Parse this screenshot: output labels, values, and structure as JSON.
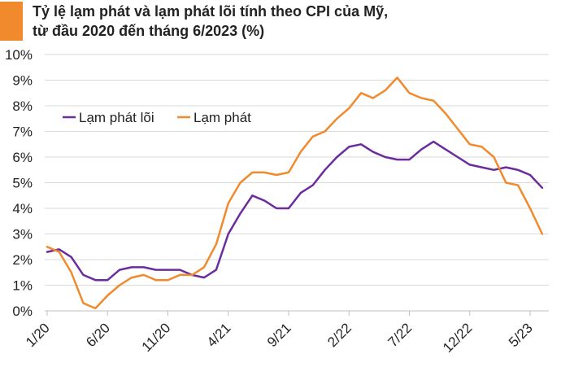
{
  "title_line1": "Tỷ lệ lạm phát và lạm phát lõi tính theo CPI của Mỹ,",
  "title_line2": "từ đầu 2020 đến tháng 6/2023 (%)",
  "colors": {
    "accent": "#f08a2c",
    "core": "#6a2c9e",
    "headline": "#f08a2c",
    "grid": "#d9d9d9",
    "axis": "#bfbfbf"
  },
  "chart_data": {
    "type": "line",
    "title": "Tỷ lệ lạm phát và lạm phát lõi tính theo CPI của Mỹ, từ đầu 2020 đến tháng 6/2023 (%)",
    "xlabel": "",
    "ylabel": "",
    "ylim": [
      0,
      10
    ],
    "yticks": [
      "0%",
      "1%",
      "2%",
      "3%",
      "4%",
      "5%",
      "6%",
      "7%",
      "8%",
      "9%",
      "10%"
    ],
    "xtick_labels": [
      {
        "index": 0,
        "label": "1/20"
      },
      {
        "index": 5,
        "label": "6/20"
      },
      {
        "index": 10,
        "label": "11/20"
      },
      {
        "index": 15,
        "label": "4/21"
      },
      {
        "index": 20,
        "label": "9/21"
      },
      {
        "index": 25,
        "label": "2/22"
      },
      {
        "index": 30,
        "label": "7/22"
      },
      {
        "index": 35,
        "label": "12/22"
      },
      {
        "index": 40,
        "label": "5/23"
      }
    ],
    "grid": true,
    "legend_position": "top-left",
    "series": [
      {
        "name": "Lạm phát lõi",
        "color": "#6a2c9e",
        "values": [
          2.3,
          2.4,
          2.1,
          1.4,
          1.2,
          1.2,
          1.6,
          1.7,
          1.7,
          1.6,
          1.6,
          1.6,
          1.4,
          1.3,
          1.6,
          3.0,
          3.8,
          4.5,
          4.3,
          4.0,
          4.0,
          4.6,
          4.9,
          5.5,
          6.0,
          6.4,
          6.5,
          6.2,
          6.0,
          5.9,
          5.9,
          6.3,
          6.6,
          6.3,
          6.0,
          5.7,
          5.6,
          5.5,
          5.6,
          5.5,
          5.3,
          4.8
        ]
      },
      {
        "name": "Lạm phát",
        "color": "#f08a2c",
        "values": [
          2.5,
          2.3,
          1.5,
          0.3,
          0.1,
          0.6,
          1.0,
          1.3,
          1.4,
          1.2,
          1.2,
          1.4,
          1.4,
          1.7,
          2.6,
          4.2,
          5.0,
          5.4,
          5.4,
          5.3,
          5.4,
          6.2,
          6.8,
          7.0,
          7.5,
          7.9,
          8.5,
          8.3,
          8.6,
          9.1,
          8.5,
          8.3,
          8.2,
          7.7,
          7.1,
          6.5,
          6.4,
          6.0,
          5.0,
          4.9,
          4.0,
          3.0
        ]
      }
    ]
  }
}
